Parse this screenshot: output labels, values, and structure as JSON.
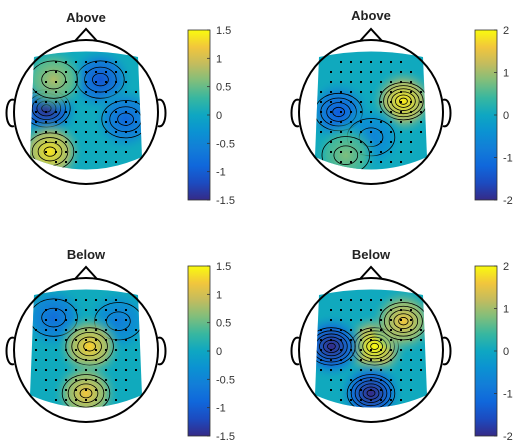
{
  "chart_data": [
    {
      "type": "heatmap",
      "subtype": "eeg-topoplot",
      "title": "Above",
      "colormap": "parula",
      "clim": [
        -1.5,
        1.5
      ],
      "colorbar_ticks": [
        "1.5",
        "1",
        "0.5",
        "0",
        "-0.5",
        "-1",
        "-1.5"
      ],
      "features": [
        {
          "kind": "negative-peak",
          "region": "left-temporal",
          "value": -1.5
        },
        {
          "kind": "negative-peak",
          "region": "frontal-center-right",
          "value": -1.1
        },
        {
          "kind": "negative-peak",
          "region": "right-temporal",
          "value": -0.9
        },
        {
          "kind": "positive-peak",
          "region": "left-occipital",
          "value": 1.4
        },
        {
          "kind": "positive-peak",
          "region": "left-frontal",
          "value": 0.8
        }
      ]
    },
    {
      "type": "heatmap",
      "subtype": "eeg-topoplot",
      "title": "Above",
      "colormap": "parula",
      "clim": [
        -2,
        2
      ],
      "colorbar_ticks": [
        "2",
        "1",
        "0",
        "-1",
        "-2"
      ],
      "features": [
        {
          "kind": "positive-peak",
          "region": "right-central",
          "value": 1.9
        },
        {
          "kind": "negative-peak",
          "region": "left-central",
          "value": -1.4
        },
        {
          "kind": "negative-peak",
          "region": "center-posterior",
          "value": -0.7
        },
        {
          "kind": "positive-peak",
          "region": "left-posterior",
          "value": 0.8
        }
      ]
    },
    {
      "type": "heatmap",
      "subtype": "eeg-topoplot",
      "title": "Below",
      "colormap": "parula",
      "clim": [
        -1.5,
        1.5
      ],
      "colorbar_ticks": [
        "1.5",
        "1",
        "0.5",
        "0",
        "-0.5",
        "-1",
        "-1.5"
      ],
      "features": [
        {
          "kind": "negative-peak",
          "region": "left-frontal",
          "value": -0.8
        },
        {
          "kind": "negative-peak",
          "region": "right-frontal",
          "value": -0.6
        },
        {
          "kind": "positive-peak",
          "region": "center",
          "value": 1.3
        },
        {
          "kind": "positive-peak",
          "region": "posterior",
          "value": 1.2
        }
      ]
    },
    {
      "type": "heatmap",
      "subtype": "eeg-topoplot",
      "title": "Below",
      "colormap": "parula",
      "clim": [
        -2,
        2
      ],
      "colorbar_ticks": [
        "2",
        "1",
        "0",
        "-1",
        "-2"
      ],
      "features": [
        {
          "kind": "positive-peak",
          "region": "center",
          "value": 2.0
        },
        {
          "kind": "positive-peak",
          "region": "right-frontal",
          "value": 1.6
        },
        {
          "kind": "negative-peak",
          "region": "left-temporal",
          "value": -2.0
        },
        {
          "kind": "negative-peak",
          "region": "posterior",
          "value": -2.0
        }
      ]
    }
  ]
}
